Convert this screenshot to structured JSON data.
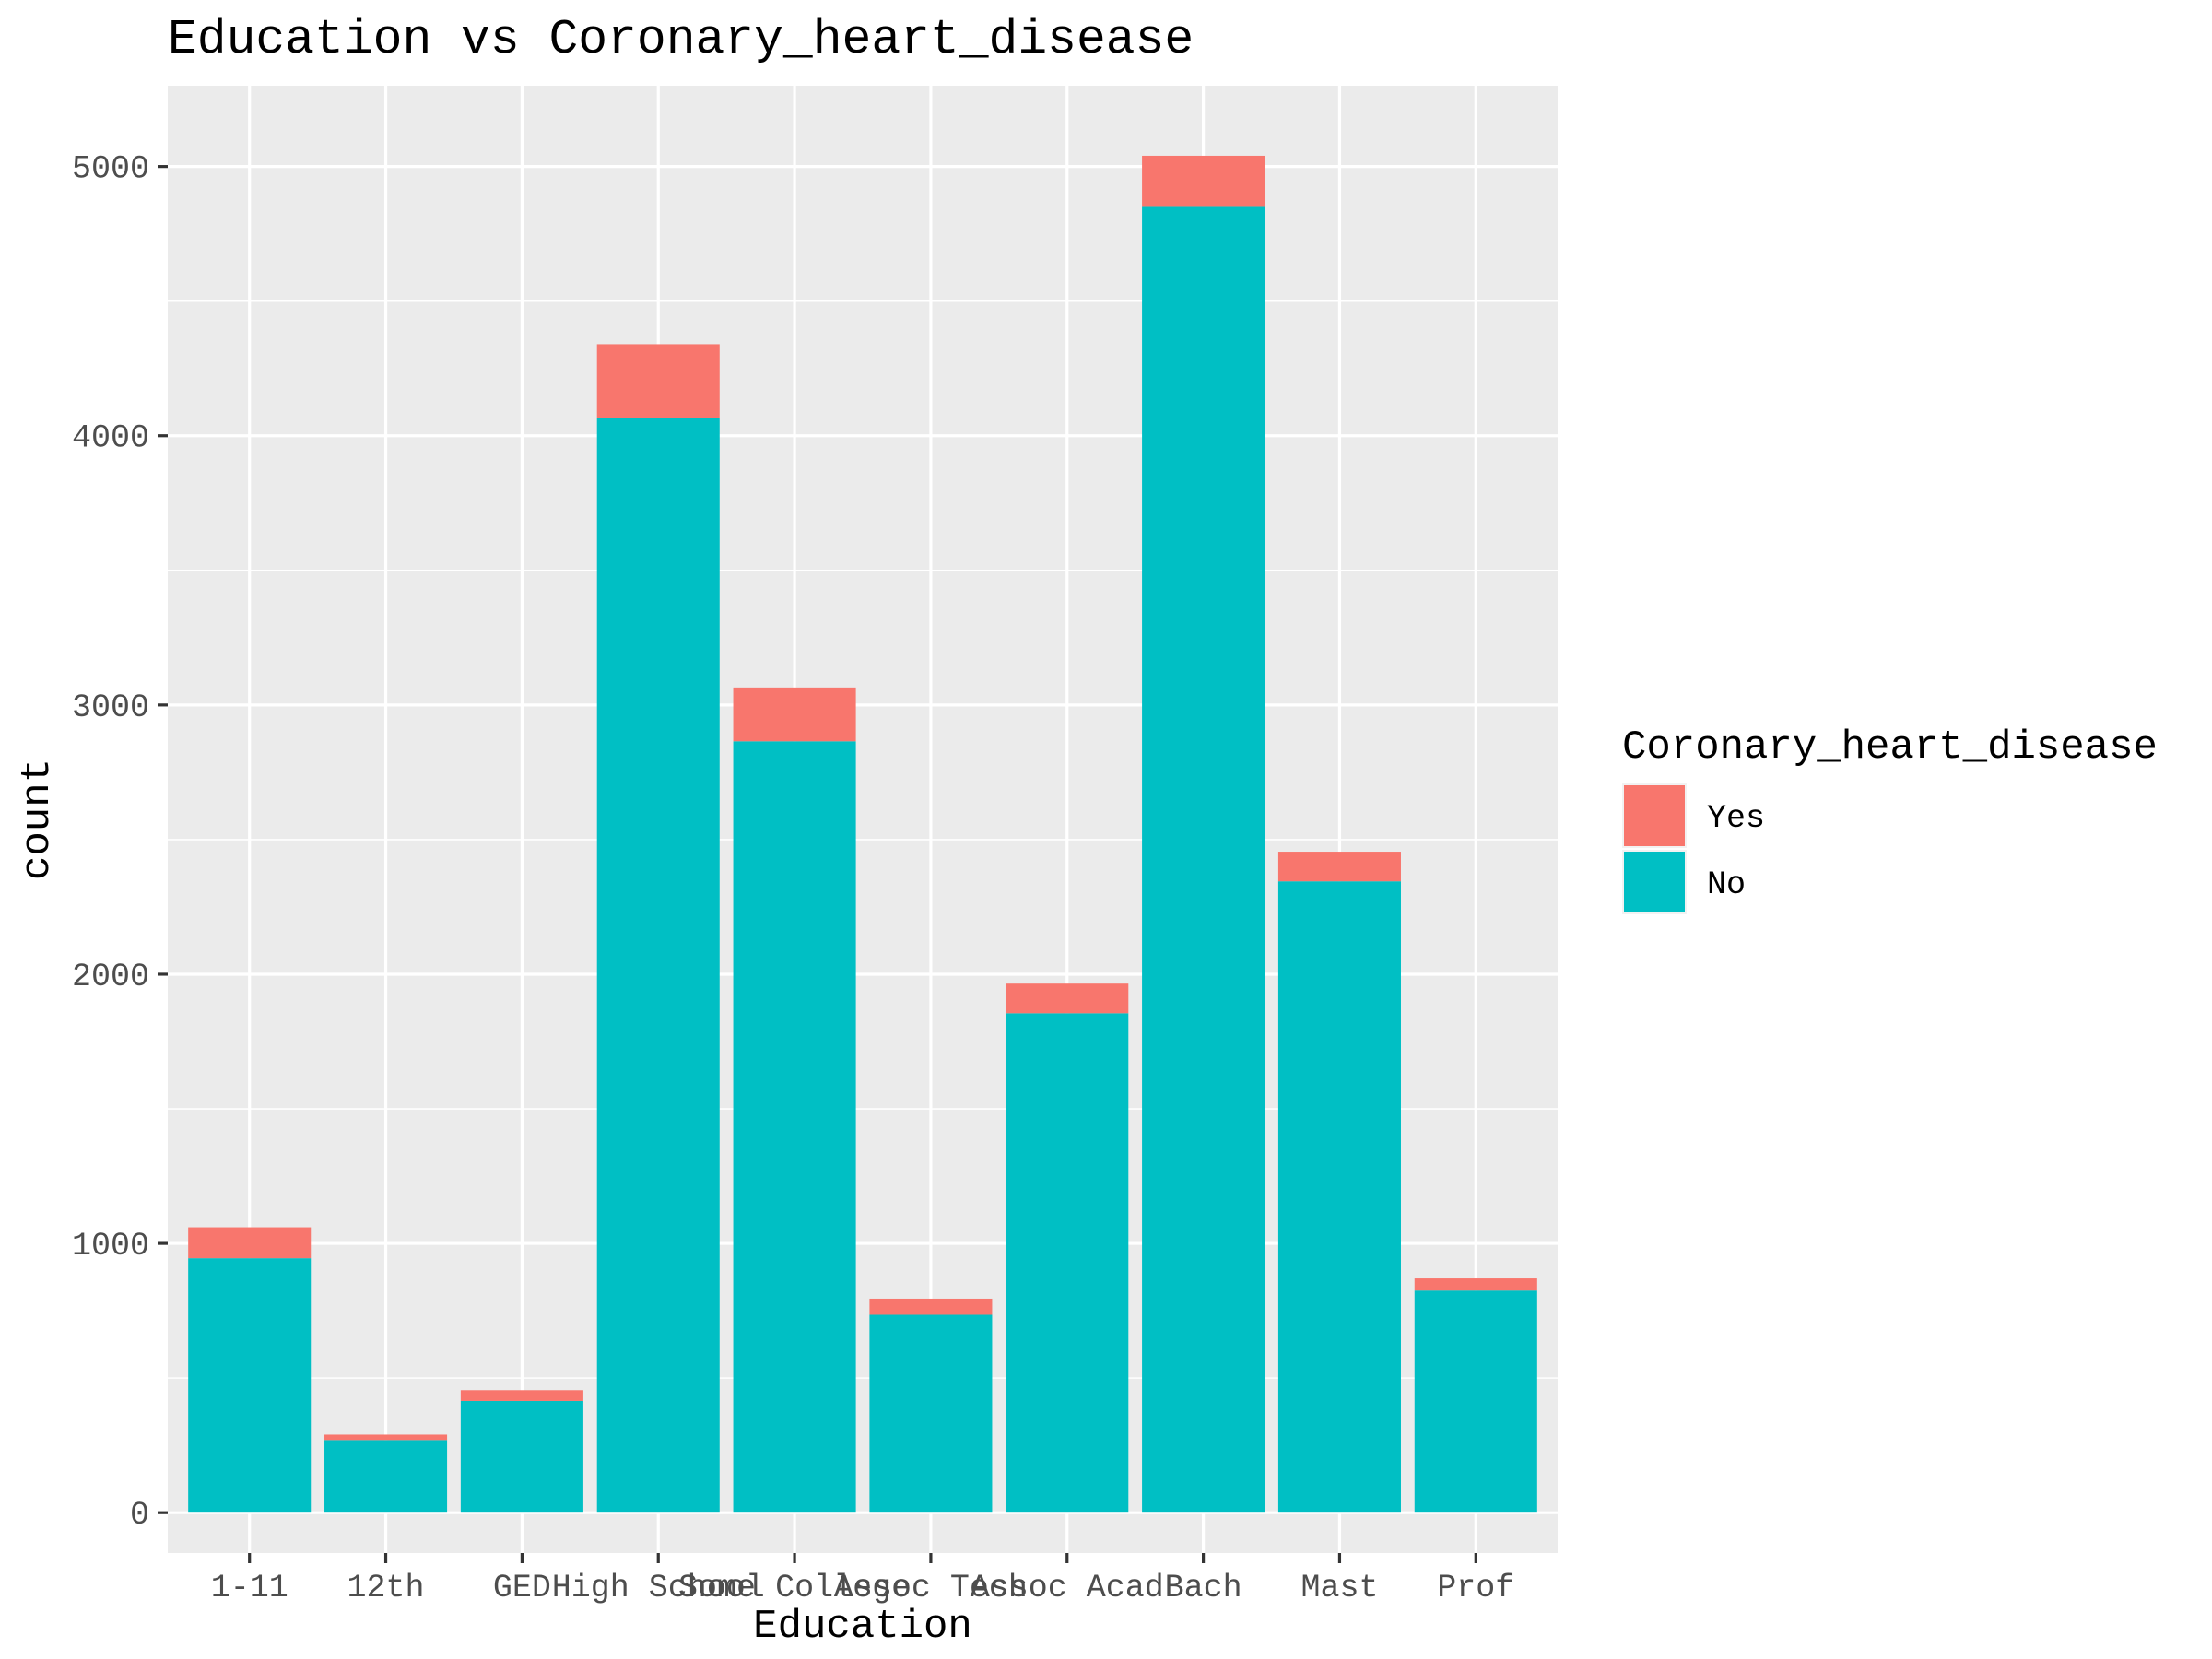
{
  "chart_data": {
    "type": "bar",
    "stacked": true,
    "title": "Education vs Coronary_heart_disease",
    "xlabel": "Education",
    "ylabel": "count",
    "categories": [
      "1-11",
      "12th",
      "GED",
      "High School",
      "Some College",
      "Assoc Tech",
      "Assoc Acad",
      "Bach",
      "Mast",
      "Prof"
    ],
    "series": [
      {
        "name": "No",
        "color": "#00BFC4",
        "values": [
          945,
          270,
          415,
          4065,
          2865,
          735,
          1855,
          4850,
          2345,
          825
        ]
      },
      {
        "name": "Yes",
        "color": "#F8766D",
        "values": [
          115,
          20,
          40,
          275,
          200,
          60,
          110,
          190,
          110,
          45
        ]
      }
    ],
    "ylim": [
      -150,
      5300
    ],
    "yticks": [
      0,
      1000,
      2000,
      3000,
      4000,
      5000
    ],
    "grid": true,
    "legend": {
      "title": "Coronary_heart_disease",
      "position": "right",
      "entries": [
        "Yes",
        "No"
      ]
    }
  }
}
